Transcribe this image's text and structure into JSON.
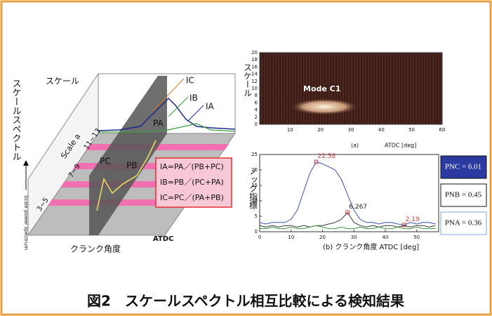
{
  "caption": "図2　スケールスペクトル相互比較による検知結果",
  "left_panel": {
    "scale_label": "スケール",
    "spectrum_label": "スケールスペクトル",
    "power_label": "Scale power spectrum",
    "scale_axis_label": "Scale a",
    "scale_ranges": [
      "3~5",
      "7~9",
      "11~13"
    ],
    "crank_label": "クランク角度",
    "atdc_label": "ATDC",
    "curve_labels": {
      "IC": "IC",
      "IB": "IB",
      "IA": "IA",
      "PA": "PA",
      "PB": "PB",
      "PC": "PC"
    },
    "formulas": [
      "IA=PA／(PB+PC)",
      "IB=PB／(PC+PA)",
      "IC=PC／(PA+PB)"
    ]
  },
  "chart_data": [
    {
      "type": "heatmap",
      "title": "Mode C1",
      "ylabel": "スケール",
      "subtitle": "(a)",
      "xlabel": "ATDC [deg]",
      "xlim": [
        0,
        60
      ],
      "xticks": [
        10,
        20,
        30,
        40,
        50,
        60
      ],
      "ylim": [
        0,
        20
      ],
      "yticks": [
        0,
        2,
        4,
        6,
        8,
        10,
        12,
        14,
        16,
        18,
        20
      ]
    },
    {
      "type": "line",
      "ylabel": "ノック指標",
      "xlabel": "(b) クランク角度 ATDC [deg]",
      "x": [
        0,
        2,
        4,
        6,
        8,
        10,
        12,
        14,
        16,
        18,
        20,
        22,
        24,
        26,
        28,
        30,
        32,
        34,
        36,
        38,
        40,
        42,
        44,
        46,
        48,
        50,
        52,
        54,
        56
      ],
      "xlim": [
        0,
        57
      ],
      "xticks": [
        0,
        10,
        20,
        30,
        40,
        50
      ],
      "ylim": [
        0,
        25
      ],
      "yticks": [
        0,
        5,
        10,
        15,
        20,
        25
      ],
      "series": [
        {
          "color": "#3a4fb0",
          "label_color": "#d04040",
          "values": [
            3,
            2.5,
            3,
            3,
            3,
            4,
            7,
            13,
            19,
            22.58,
            22,
            21,
            20,
            17,
            12,
            7,
            4,
            3,
            3,
            2.5,
            3,
            3,
            2.5,
            2.19,
            3,
            2.5,
            3,
            3,
            2.5
          ],
          "value_labels": [
            null,
            null,
            null,
            null,
            null,
            null,
            null,
            null,
            null,
            "22.58",
            null,
            null,
            null,
            null,
            null,
            null,
            null,
            null,
            null,
            null,
            null,
            null,
            null,
            "2.19",
            null,
            null,
            null,
            null,
            null
          ]
        },
        {
          "color": "#333333",
          "label_color": "#222222",
          "values": [
            2,
            1.5,
            2,
            1.5,
            2,
            2,
            1.5,
            2,
            1.5,
            2,
            2,
            2.5,
            3,
            4,
            6.267,
            3,
            2,
            1.5,
            2,
            1.5,
            2,
            2,
            1.5,
            2,
            1.5,
            2,
            2,
            1.5,
            2
          ],
          "value_labels": [
            null,
            null,
            null,
            null,
            null,
            null,
            null,
            null,
            null,
            null,
            null,
            null,
            null,
            null,
            "6.267",
            null,
            null,
            null,
            null,
            null,
            null,
            null,
            null,
            null,
            null,
            null,
            null,
            null,
            null
          ]
        },
        {
          "color": "#3a9a3a",
          "values": [
            1,
            1,
            1.5,
            1,
            1,
            1.5,
            1,
            1,
            1.5,
            2,
            1.5,
            1,
            1,
            1.5,
            1,
            1,
            1.5,
            1,
            1,
            1.5,
            1,
            1,
            1.5,
            1,
            1,
            1.5,
            1,
            1,
            1
          ]
        }
      ]
    }
  ],
  "indices": [
    "PNC = 6.01",
    "PNB = 0.45",
    "PNA = 0.36"
  ]
}
